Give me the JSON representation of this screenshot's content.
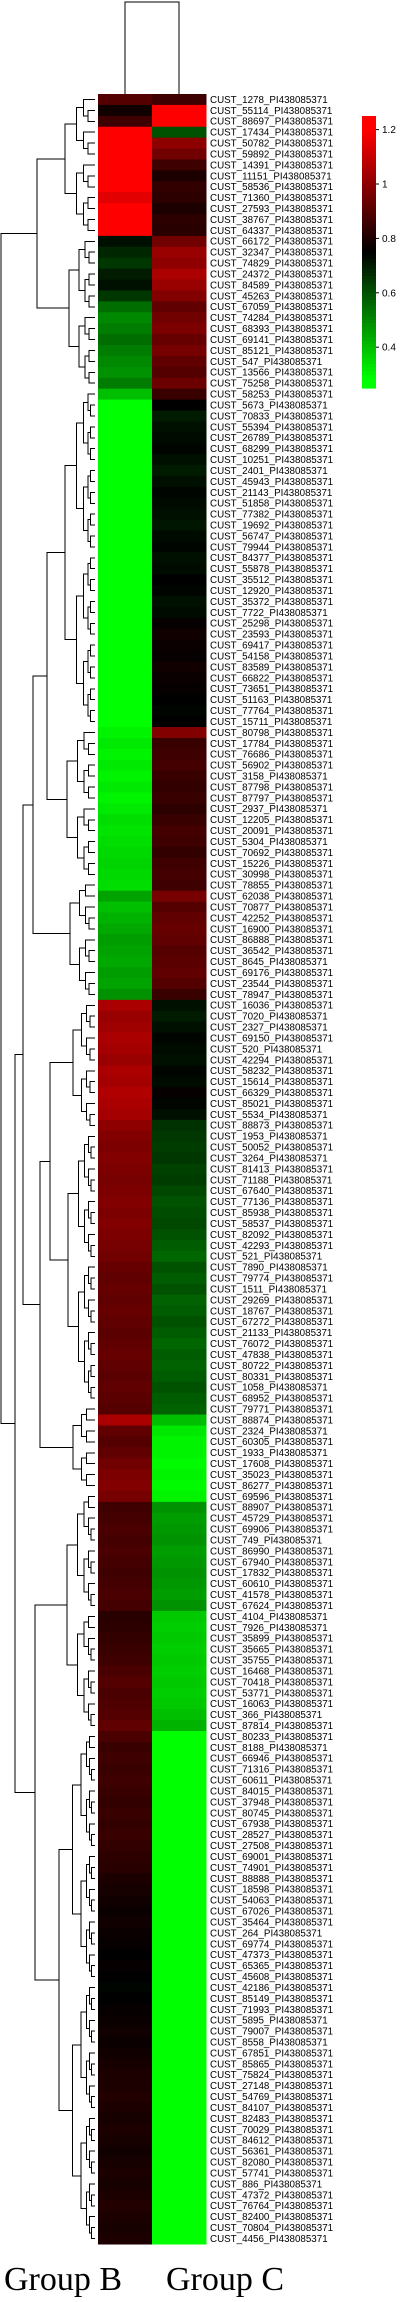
{
  "chart_data": {
    "type": "heatmap",
    "columns": [
      "Group B",
      "Group  C"
    ],
    "colorbar": {
      "ticks": [
        1.2,
        1,
        0.8,
        0.6,
        0.4
      ],
      "colors": [
        "#00ff00",
        "#000000",
        "#ff0000"
      ],
      "range": [
        0.25,
        1.25
      ]
    },
    "rows": [
      [
        "CUST_1278_PI438085371",
        0.9,
        0.86
      ],
      [
        "CUST_55114_PI438085371",
        0.78,
        1.22
      ],
      [
        "CUST_88697_PI438085371",
        0.86,
        1.2
      ],
      [
        "CUST_17434_PI438085371",
        1.22,
        0.6
      ],
      [
        "CUST_50782_PI438085371",
        1.22,
        1.0
      ],
      [
        "CUST_59892_PI438085371",
        1.22,
        0.95
      ],
      [
        "CUST_14391_PI438085371",
        1.22,
        0.86
      ],
      [
        "CUST_11151_PI438085371",
        1.22,
        0.8
      ],
      [
        "CUST_58536_PI438085371",
        1.22,
        0.84
      ],
      [
        "CUST_71360_PI438085371",
        1.15,
        0.83
      ],
      [
        "CUST_27593_PI438085371",
        1.22,
        0.8
      ],
      [
        "CUST_38767_PI438085371",
        1.22,
        0.83
      ],
      [
        "CUST_64337_PI438085371",
        1.22,
        0.82
      ],
      [
        "CUST_66172_PI438085371",
        0.72,
        0.95
      ],
      [
        "CUST_32347_PI438085371",
        0.68,
        1.02
      ],
      [
        "CUST_74829_PI438085371",
        0.65,
        1.0
      ],
      [
        "CUST_24372_PI438085371",
        0.7,
        1.05
      ],
      [
        "CUST_84589_PI438085371",
        0.72,
        1.02
      ],
      [
        "CUST_45263_PI438085371",
        0.65,
        0.98
      ],
      [
        "CUST_67059_PI438085371",
        0.55,
        0.92
      ],
      [
        "CUST_74284_PI438085371",
        0.5,
        0.95
      ],
      [
        "CUST_68393_PI438085371",
        0.52,
        0.97
      ],
      [
        "CUST_69141_PI438085371",
        0.55,
        0.93
      ],
      [
        "CUST_85121_PI438085371",
        0.52,
        0.96
      ],
      [
        "CUST_547_PI438085371",
        0.5,
        0.92
      ],
      [
        "CUST_13566_PI438085371",
        0.48,
        0.9
      ],
      [
        "CUST_75258_PI438085371",
        0.52,
        0.94
      ],
      [
        "CUST_58253_PI438085371",
        0.4,
        0.85
      ],
      [
        "CUST_5673_PI438085371",
        0.28,
        0.75
      ],
      [
        "CUST_70833_PI438085371",
        0.28,
        0.7
      ],
      [
        "CUST_55394_PI438085371",
        0.28,
        0.72
      ],
      [
        "CUST_26789_PI438085371",
        0.28,
        0.73
      ],
      [
        "CUST_68299_PI438085371",
        0.28,
        0.74
      ],
      [
        "CUST_10251_PI438085371",
        0.28,
        0.72
      ],
      [
        "CUST_2401_PI438085371",
        0.28,
        0.7
      ],
      [
        "CUST_45943_PI438085371",
        0.28,
        0.72
      ],
      [
        "CUST_21143_PI438085371",
        0.28,
        0.74
      ],
      [
        "CUST_51858_PI438085371",
        0.28,
        0.73
      ],
      [
        "CUST_77382_PI438085371",
        0.28,
        0.72
      ],
      [
        "CUST_19692_PI438085371",
        0.28,
        0.71
      ],
      [
        "CUST_56747_PI438085371",
        0.28,
        0.73
      ],
      [
        "CUST_79944_PI438085371",
        0.28,
        0.74
      ],
      [
        "CUST_84377_PI438085371",
        0.28,
        0.72
      ],
      [
        "CUST_55878_PI438085371",
        0.28,
        0.73
      ],
      [
        "CUST_35512_PI438085371",
        0.28,
        0.75
      ],
      [
        "CUST_12920_PI438085371",
        0.28,
        0.74
      ],
      [
        "CUST_35372_PI438085371",
        0.28,
        0.72
      ],
      [
        "CUST_7722_PI438085371",
        0.28,
        0.73
      ],
      [
        "CUST_25298_PI438085371",
        0.28,
        0.76
      ],
      [
        "CUST_23593_PI438085371",
        0.28,
        0.78
      ],
      [
        "CUST_69417_PI438085371",
        0.28,
        0.77
      ],
      [
        "CUST_54158_PI438085371",
        0.28,
        0.76
      ],
      [
        "CUST_83589_PI438085371",
        0.28,
        0.78
      ],
      [
        "CUST_66822_PI438085371",
        0.28,
        0.77
      ],
      [
        "CUST_73651_PI438085371",
        0.28,
        0.76
      ],
      [
        "CUST_51163_PI438085371",
        0.28,
        0.75
      ],
      [
        "CUST_77764_PI438085371",
        0.28,
        0.74
      ],
      [
        "CUST_15711_PI438085371",
        0.28,
        0.75
      ],
      [
        "CUST_80798_PI438085371",
        0.3,
        0.98
      ],
      [
        "CUST_17784_PI438085371",
        0.32,
        0.85
      ],
      [
        "CUST_76686_PI438085371",
        0.3,
        0.86
      ],
      [
        "CUST_56902_PI438085371",
        0.32,
        0.87
      ],
      [
        "CUST_3158_PI438085371",
        0.3,
        0.85
      ],
      [
        "CUST_87798_PI438085371",
        0.32,
        0.84
      ],
      [
        "CUST_87797_PI438085371",
        0.3,
        0.85
      ],
      [
        "CUST_2937_PI438085371",
        0.32,
        0.83
      ],
      [
        "CUST_12205_PI438085371",
        0.34,
        0.85
      ],
      [
        "CUST_20091_PI438085371",
        0.33,
        0.87
      ],
      [
        "CUST_5304_PI438085371",
        0.34,
        0.86
      ],
      [
        "CUST_70692_PI438085371",
        0.35,
        0.84
      ],
      [
        "CUST_15226_PI438085371",
        0.36,
        0.86
      ],
      [
        "CUST_30998_PI438085371",
        0.35,
        0.87
      ],
      [
        "CUST_78855_PI438085371",
        0.34,
        0.86
      ],
      [
        "CUST_62038_PI438085371",
        0.45,
        0.96
      ],
      [
        "CUST_70877_PI438085371",
        0.4,
        0.9
      ],
      [
        "CUST_42252_PI438085371",
        0.42,
        0.92
      ],
      [
        "CUST_16900_PI438085371",
        0.44,
        0.93
      ],
      [
        "CUST_86888_PI438085371",
        0.46,
        0.92
      ],
      [
        "CUST_36542_PI438085371",
        0.45,
        0.9
      ],
      [
        "CUST_8645_PI438085371",
        0.44,
        0.91
      ],
      [
        "CUST_69176_PI438085371",
        0.46,
        0.92
      ],
      [
        "CUST_23544_PI438085371",
        0.45,
        0.9
      ],
      [
        "CUST_78947_PI438085371",
        0.48,
        0.85
      ],
      [
        "CUST_16036_PI438085371",
        1.05,
        0.72
      ],
      [
        "CUST_7020_PI438085371",
        1.02,
        0.7
      ],
      [
        "CUST_2327_PI438085371",
        1.03,
        0.72
      ],
      [
        "CUST_69150_PI438085371",
        1.05,
        0.74
      ],
      [
        "CUST_520_PI438085371",
        1.04,
        0.73
      ],
      [
        "CUST_42294_PI438085371",
        1.02,
        0.72
      ],
      [
        "CUST_58232_PI438085371",
        1.05,
        0.74
      ],
      [
        "CUST_15614_PI438085371",
        1.04,
        0.73
      ],
      [
        "CUST_66329_PI438085371",
        1.06,
        0.76
      ],
      [
        "CUST_85021_PI438085371",
        1.05,
        0.74
      ],
      [
        "CUST_5534_PI438085371",
        1.04,
        0.72
      ],
      [
        "CUST_88873_PI438085371",
        1.0,
        0.66
      ],
      [
        "CUST_1953_PI438085371",
        0.98,
        0.65
      ],
      [
        "CUST_50052_PI438085371",
        0.97,
        0.64
      ],
      [
        "CUST_3264_PI438085371",
        0.98,
        0.65
      ],
      [
        "CUST_81413_PI438085371",
        0.97,
        0.63
      ],
      [
        "CUST_71188_PI438085371",
        0.96,
        0.64
      ],
      [
        "CUST_67640_PI438085371",
        0.97,
        0.62
      ],
      [
        "CUST_77136_PI438085371",
        0.98,
        0.6
      ],
      [
        "CUST_85938_PI438085371",
        0.97,
        0.61
      ],
      [
        "CUST_58537_PI438085371",
        0.98,
        0.62
      ],
      [
        "CUST_82092_PI438085371",
        0.97,
        0.6
      ],
      [
        "CUST_42293_PI438085371",
        0.96,
        0.58
      ],
      [
        "CUST_521_PI438085371",
        0.95,
        0.56
      ],
      [
        "CUST_7890_PI438085371",
        0.93,
        0.6
      ],
      [
        "CUST_79774_PI438085371",
        0.92,
        0.58
      ],
      [
        "CUST_1511_PI438085371",
        0.93,
        0.6
      ],
      [
        "CUST_29269_PI438085371",
        0.92,
        0.57
      ],
      [
        "CUST_18767_PI438085371",
        0.93,
        0.58
      ],
      [
        "CUST_67272_PI438085371",
        0.92,
        0.6
      ],
      [
        "CUST_21133_PI438085371",
        0.91,
        0.58
      ],
      [
        "CUST_76072_PI438085371",
        0.92,
        0.56
      ],
      [
        "CUST_47838_PI438085371",
        0.93,
        0.58
      ],
      [
        "CUST_80722_PI438085371",
        0.92,
        0.57
      ],
      [
        "CUST_80331_PI438085371",
        0.91,
        0.58
      ],
      [
        "CUST_1058_PI438085371",
        0.92,
        0.6
      ],
      [
        "CUST_68952_PI438085371",
        0.91,
        0.58
      ],
      [
        "CUST_79771_PI438085371",
        0.9,
        0.57
      ],
      [
        "CUST_88874_PI438085371",
        1.05,
        0.4
      ],
      [
        "CUST_2324_PI438085371",
        0.92,
        0.32
      ],
      [
        "CUST_60305_PI438085371",
        0.9,
        0.3
      ],
      [
        "CUST_1933_PI438085371",
        0.92,
        0.3
      ],
      [
        "CUST_17608_PI438085371",
        0.95,
        0.29
      ],
      [
        "CUST_35023_PI438085371",
        0.97,
        0.3
      ],
      [
        "CUST_86277_PI438085371",
        0.98,
        0.29
      ],
      [
        "CUST_69596_PI438085371",
        0.96,
        0.3
      ],
      [
        "CUST_88907_PI438085371",
        0.86,
        0.48
      ],
      [
        "CUST_45729_PI438085371",
        0.87,
        0.46
      ],
      [
        "CUST_69906_PI438085371",
        0.88,
        0.47
      ],
      [
        "CUST_749_PI438085371",
        0.87,
        0.48
      ],
      [
        "CUST_86990_PI438085371",
        0.88,
        0.46
      ],
      [
        "CUST_67940_PI438085371",
        0.87,
        0.47
      ],
      [
        "CUST_17832_PI438085371",
        0.86,
        0.48
      ],
      [
        "CUST_60610_PI438085371",
        0.87,
        0.47
      ],
      [
        "CUST_41578_PI438085371",
        0.88,
        0.46
      ],
      [
        "CUST_67624_PI438085371",
        0.87,
        0.48
      ],
      [
        "CUST_4104_PI438085371",
        0.82,
        0.38
      ],
      [
        "CUST_7926_PI438085371",
        0.83,
        0.37
      ],
      [
        "CUST_35899_PI438085371",
        0.84,
        0.38
      ],
      [
        "CUST_35665_PI438085371",
        0.85,
        0.37
      ],
      [
        "CUST_35755_PI438085371",
        0.86,
        0.38
      ],
      [
        "CUST_16468_PI438085371",
        0.88,
        0.37
      ],
      [
        "CUST_70418_PI438085371",
        0.9,
        0.38
      ],
      [
        "CUST_53771_PI438085371",
        0.88,
        0.37
      ],
      [
        "CUST_16063_PI438085371",
        0.89,
        0.38
      ],
      [
        "CUST_366_PI438085371",
        0.9,
        0.4
      ],
      [
        "CUST_87814_PI438085371",
        0.92,
        0.42
      ],
      [
        "CUST_80233_PI438085371",
        0.88,
        0.28
      ],
      [
        "CUST_8188_PI438085371",
        0.85,
        0.28
      ],
      [
        "CUST_66946_PI438085371",
        0.86,
        0.28
      ],
      [
        "CUST_71316_PI438085371",
        0.85,
        0.28
      ],
      [
        "CUST_60611_PI438085371",
        0.86,
        0.28
      ],
      [
        "CUST_84015_PI438085371",
        0.85,
        0.28
      ],
      [
        "CUST_37948_PI438085371",
        0.84,
        0.28
      ],
      [
        "CUST_80745_PI438085371",
        0.85,
        0.28
      ],
      [
        "CUST_67938_PI438085371",
        0.84,
        0.28
      ],
      [
        "CUST_28527_PI438085371",
        0.85,
        0.28
      ],
      [
        "CUST_27508_PI438085371",
        0.84,
        0.28
      ],
      [
        "CUST_69001_PI438085371",
        0.83,
        0.28
      ],
      [
        "CUST_74901_PI438085371",
        0.82,
        0.28
      ],
      [
        "CUST_88888_PI438085371",
        0.8,
        0.28
      ],
      [
        "CUST_18598_PI438085371",
        0.79,
        0.28
      ],
      [
        "CUST_54063_PI438085371",
        0.78,
        0.28
      ],
      [
        "CUST_67026_PI438085371",
        0.77,
        0.28
      ],
      [
        "CUST_35464_PI438085371",
        0.78,
        0.28
      ],
      [
        "CUST_264_PI438085371",
        0.77,
        0.28
      ],
      [
        "CUST_69774_PI438085371",
        0.76,
        0.28
      ],
      [
        "CUST_47373_PI438085371",
        0.75,
        0.28
      ],
      [
        "CUST_65365_PI438085371",
        0.76,
        0.28
      ],
      [
        "CUST_45608_PI438085371",
        0.75,
        0.28
      ],
      [
        "CUST_42186_PI438085371",
        0.74,
        0.28
      ],
      [
        "CUST_85149_PI438085371",
        0.75,
        0.28
      ],
      [
        "CUST_71993_PI438085371",
        0.76,
        0.28
      ],
      [
        "CUST_5895_PI438085371",
        0.77,
        0.28
      ],
      [
        "CUST_79007_PI438085371",
        0.78,
        0.28
      ],
      [
        "CUST_8558_PI438085371",
        0.77,
        0.28
      ],
      [
        "CUST_67851_PI438085371",
        0.78,
        0.28
      ],
      [
        "CUST_85865_PI438085371",
        0.79,
        0.28
      ],
      [
        "CUST_75824_PI438085371",
        0.8,
        0.28
      ],
      [
        "CUST_27148_PI438085371",
        0.8,
        0.28
      ],
      [
        "CUST_54769_PI438085371",
        0.81,
        0.28
      ],
      [
        "CUST_84107_PI438085371",
        0.8,
        0.28
      ],
      [
        "CUST_82483_PI438085371",
        0.79,
        0.28
      ],
      [
        "CUST_70029_PI438085371",
        0.8,
        0.28
      ],
      [
        "CUST_84612_PI438085371",
        0.79,
        0.28
      ],
      [
        "CUST_56361_PI438085371",
        0.78,
        0.28
      ],
      [
        "CUST_82080_PI438085371",
        0.79,
        0.28
      ],
      [
        "CUST_57741_PI438085371",
        0.8,
        0.28
      ],
      [
        "CUST_886_PI438085371",
        0.79,
        0.28
      ],
      [
        "CUST_47372_PI438085371",
        0.8,
        0.28
      ],
      [
        "CUST_76764_PI438085371",
        0.81,
        0.28
      ],
      [
        "CUST_82400_PI438085371",
        0.8,
        0.28
      ],
      [
        "CUST_70804_PI438085371",
        0.79,
        0.28
      ],
      [
        "CUST_4456_PI438085371",
        0.8,
        0.28
      ]
    ]
  }
}
